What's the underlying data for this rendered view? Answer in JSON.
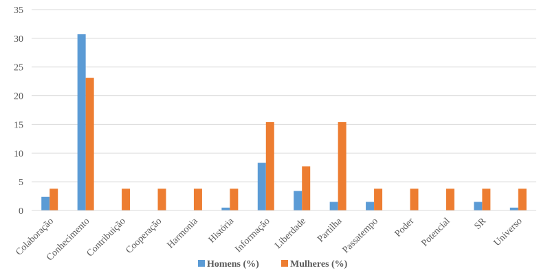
{
  "chart_data": {
    "type": "bar",
    "title": "",
    "xlabel": "",
    "ylabel": "",
    "ylim": [
      0,
      35
    ],
    "yticks": [
      0,
      5,
      10,
      15,
      20,
      25,
      30,
      35
    ],
    "grid": true,
    "legend_position": "bottom",
    "categories": [
      "Colaboração",
      "Conhecimento",
      "Contribuição",
      "Cooperação",
      "Harmonia",
      "História",
      "Informação",
      "Liberdade",
      "Partilha",
      "Passatempo",
      "Poder",
      "Potencial",
      "SR",
      "Universo"
    ],
    "series": [
      {
        "name": "Homens (%)",
        "color": "#5B9BD5",
        "values": [
          2.4,
          30.7,
          0,
          0,
          0,
          0.5,
          8.3,
          3.4,
          1.5,
          1.5,
          0,
          0,
          1.5,
          0.5
        ]
      },
      {
        "name": "Mulheres (%)",
        "color": "#ED7D31",
        "values": [
          3.8,
          23.1,
          3.8,
          3.8,
          3.8,
          3.8,
          15.4,
          7.7,
          15.4,
          3.8,
          3.8,
          3.8,
          3.8,
          3.8
        ]
      }
    ]
  }
}
